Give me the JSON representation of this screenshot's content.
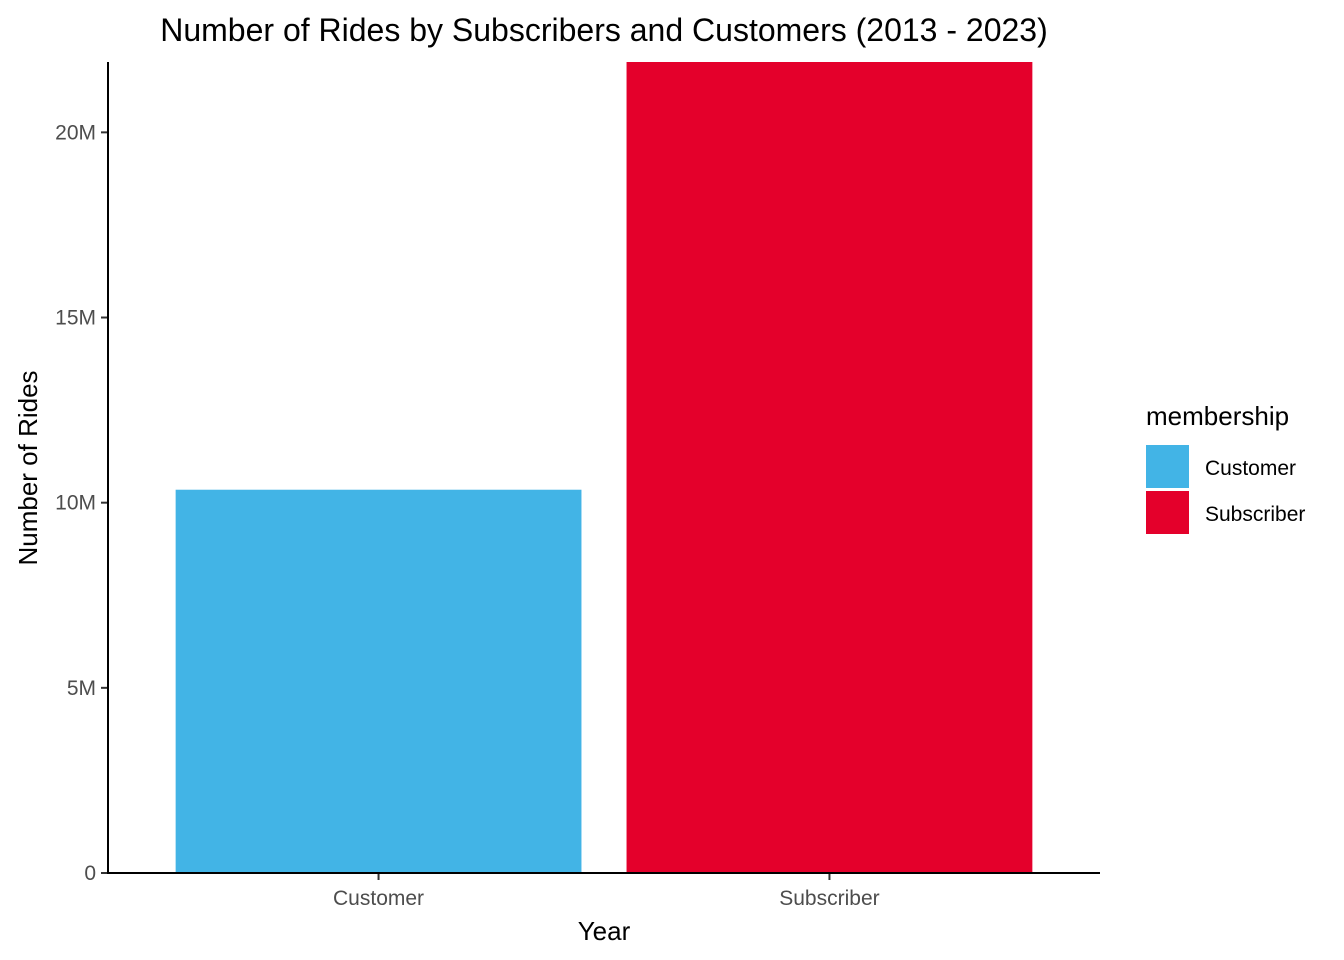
{
  "chart_data": {
    "type": "bar",
    "title": "Number of Rides by Subscribers and Customers (2013 - 2023)",
    "xlabel": "Year",
    "ylabel": "Number of Rides",
    "categories": [
      "Customer",
      "Subscriber"
    ],
    "values": [
      10350000,
      21900000
    ],
    "colors": [
      "#42B4E6",
      "#E4002B"
    ],
    "ylim": [
      0,
      21900000
    ],
    "yticks": [
      0,
      5000000,
      10000000,
      15000000,
      20000000
    ],
    "ytick_labels": [
      "0",
      "5M",
      "10M",
      "15M",
      "20M"
    ],
    "grid": false,
    "legend": {
      "title": "membership",
      "placement": "right",
      "entries": [
        "Customer",
        "Subscriber"
      ]
    }
  }
}
